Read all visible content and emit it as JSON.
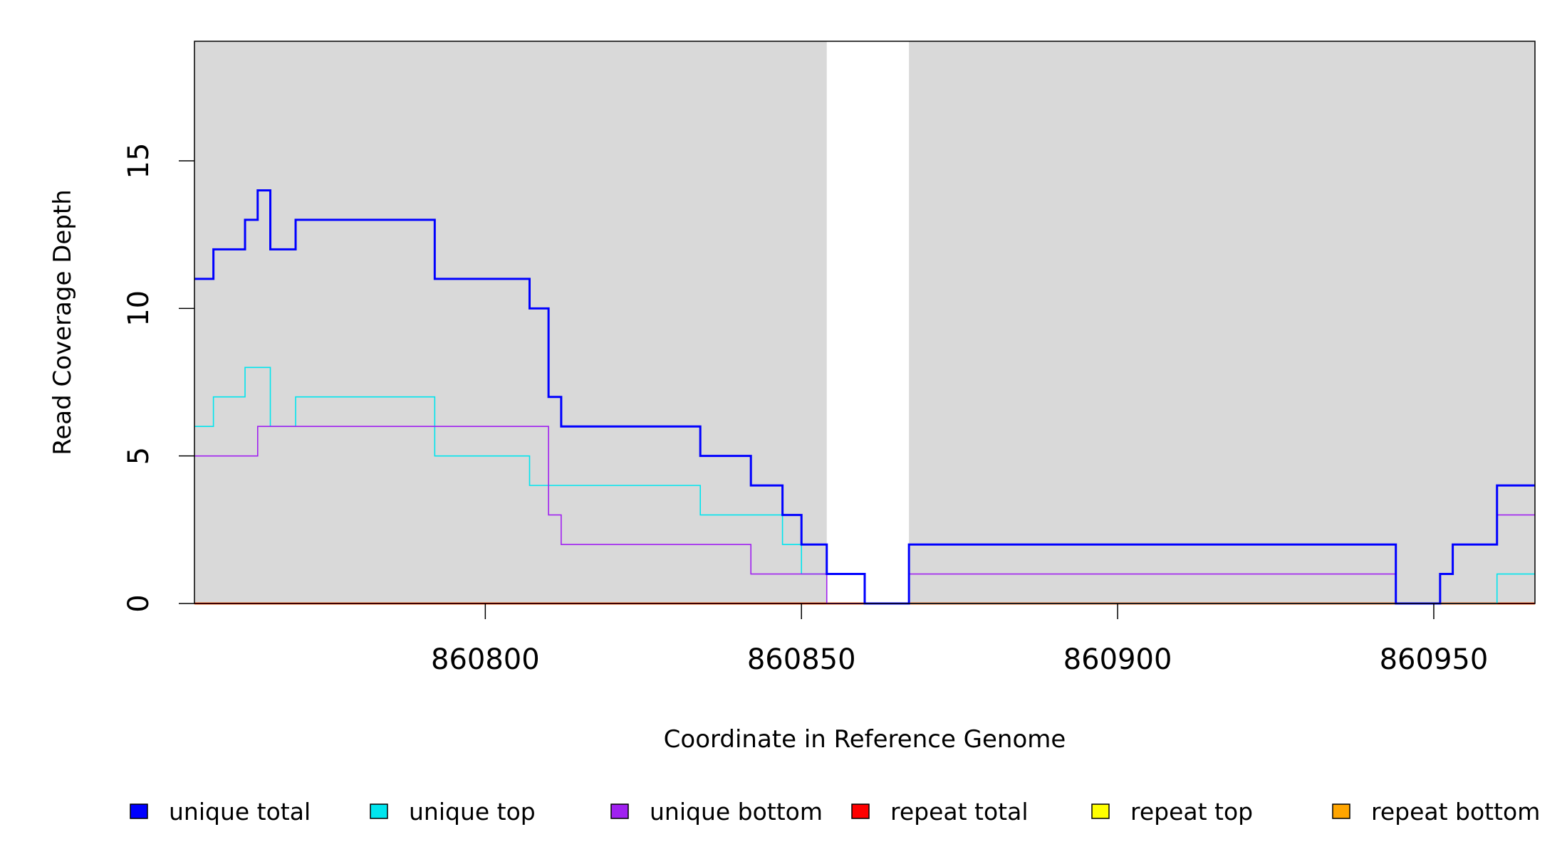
{
  "chart_data": {
    "type": "line",
    "title": "",
    "xlabel": "Coordinate in Reference Genome",
    "ylabel": "Read Coverage Depth",
    "xlim": [
      860754,
      860966
    ],
    "ylim": [
      0,
      19
    ],
    "x_ticks": [
      860800,
      860850,
      860900,
      860950
    ],
    "y_ticks": [
      0,
      5,
      10,
      15
    ],
    "x_tick_labels": [
      "860800",
      "860850",
      "860900",
      "860950"
    ],
    "y_tick_labels": [
      "0",
      "5",
      "10",
      "15"
    ],
    "background_color": "#d9d9d9",
    "unshaded_region": [
      860854,
      860867
    ],
    "legend_position": "bottom",
    "series": [
      {
        "name": "unique total",
        "color": "#0000ff",
        "points": [
          [
            860754,
            11
          ],
          [
            860757,
            12
          ],
          [
            860762,
            13
          ],
          [
            860764,
            14
          ],
          [
            860766,
            12
          ],
          [
            860770,
            13
          ],
          [
            860792,
            11
          ],
          [
            860807,
            10
          ],
          [
            860810,
            7
          ],
          [
            860812,
            6
          ],
          [
            860834,
            5
          ],
          [
            860842,
            4
          ],
          [
            860847,
            3
          ],
          [
            860850,
            2
          ],
          [
            860854,
            1
          ],
          [
            860860,
            0
          ],
          [
            860867,
            2
          ],
          [
            860944,
            0
          ],
          [
            860951,
            1
          ],
          [
            860953,
            2
          ],
          [
            860960,
            4
          ],
          [
            860966,
            4
          ]
        ]
      },
      {
        "name": "unique top",
        "color": "#00e5ee",
        "points": [
          [
            860754,
            6
          ],
          [
            860757,
            7
          ],
          [
            860762,
            8
          ],
          [
            860766,
            6
          ],
          [
            860770,
            7
          ],
          [
            860792,
            5
          ],
          [
            860807,
            4
          ],
          [
            860834,
            3
          ],
          [
            860847,
            2
          ],
          [
            860850,
            1
          ],
          [
            860860,
            0
          ],
          [
            860960,
            1
          ],
          [
            860966,
            1
          ]
        ]
      },
      {
        "name": "unique bottom",
        "color": "#a020f0",
        "points": [
          [
            860754,
            5
          ],
          [
            860764,
            6
          ],
          [
            860810,
            3
          ],
          [
            860812,
            2
          ],
          [
            860842,
            1
          ],
          [
            860854,
            0
          ],
          [
            860867,
            1
          ],
          [
            860944,
            0
          ],
          [
            860951,
            1
          ],
          [
            860953,
            2
          ],
          [
            860960,
            3
          ],
          [
            860966,
            3
          ]
        ]
      },
      {
        "name": "repeat total",
        "color": "#ff0000",
        "points": [
          [
            860754,
            0
          ],
          [
            860966,
            0
          ]
        ]
      },
      {
        "name": "repeat top",
        "color": "#ffff00",
        "points": [
          [
            860754,
            0
          ],
          [
            860966,
            0
          ]
        ]
      },
      {
        "name": "repeat bottom",
        "color": "#ffa500",
        "points": [
          [
            860754,
            0
          ],
          [
            860966,
            0
          ]
        ]
      }
    ]
  }
}
